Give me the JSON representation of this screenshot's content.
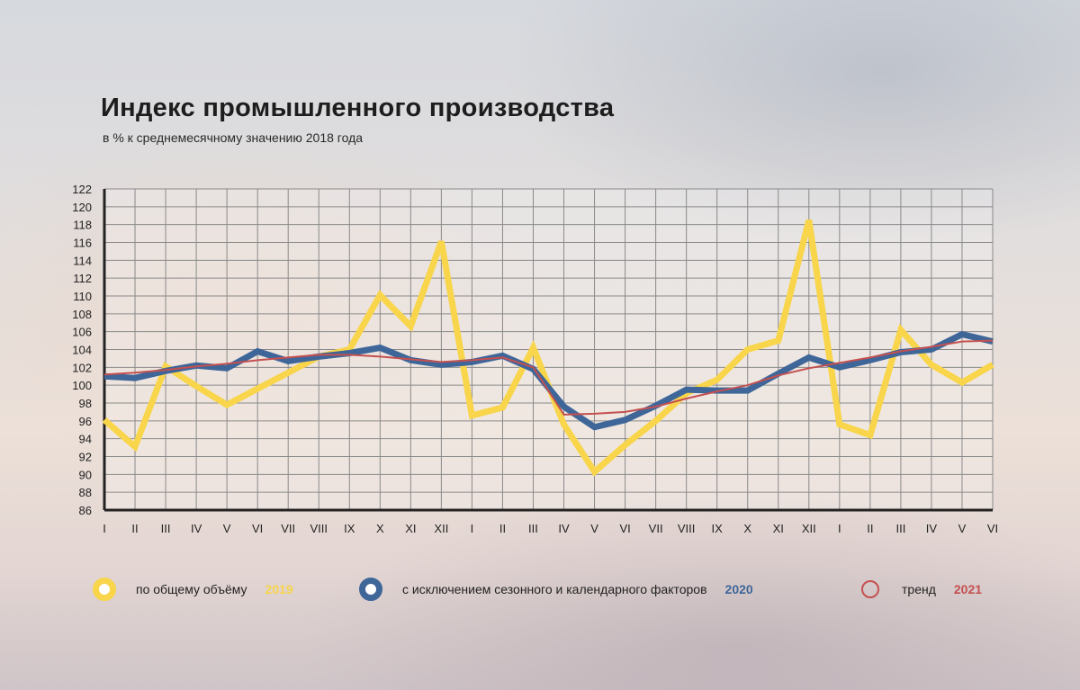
{
  "header": {
    "title": "Индекс промышленного производства",
    "subtitle": "в % к среднемесячному значению 2018 года"
  },
  "legend": [
    {
      "label": "по общему объёму",
      "year": "2019",
      "color": "#f8d54a",
      "marker": "filled-ring"
    },
    {
      "label": "с исключением сезонного и календарного факторов",
      "year": "2020",
      "color": "#3f6699",
      "marker": "filled-ring"
    },
    {
      "label": "тренд",
      "year": "2021",
      "color": "#c45050",
      "marker": "thin-ring"
    }
  ],
  "chart_data": {
    "type": "line",
    "title": "Индекс промышленного производства",
    "subtitle": "в % к среднемесячному значению 2018 года",
    "ylim": [
      86,
      122
    ],
    "yticks": [
      86,
      88,
      90,
      92,
      94,
      96,
      98,
      100,
      102,
      104,
      106,
      108,
      110,
      112,
      114,
      116,
      118,
      120,
      122
    ],
    "ytick_labels": [
      "86",
      "88",
      "90",
      "92",
      "94",
      "96",
      "98",
      "100",
      "102",
      "104",
      "106",
      "108",
      "110",
      "112",
      "114",
      "116",
      "118",
      "120",
      "122"
    ],
    "categories": [
      "I",
      "II",
      "III",
      "IV",
      "V",
      "VI",
      "VII",
      "VIII",
      "IX",
      "X",
      "XI",
      "XII",
      "I",
      "II",
      "III",
      "IV",
      "V",
      "VI",
      "VII",
      "VIII",
      "IX",
      "X",
      "XI",
      "XII",
      "I",
      "II",
      "III",
      "IV",
      "V",
      "VI"
    ],
    "grid": true,
    "series": [
      {
        "name": "по общему объёму",
        "color": "#f8d54a",
        "values": [
          96.1,
          93.1,
          102.1,
          99.9,
          97.8,
          99.6,
          101.4,
          103.2,
          104.0,
          110.1,
          106.6,
          116.1,
          96.6,
          97.5,
          104.2,
          95.6,
          90.3,
          93.3,
          96.0,
          99.1,
          100.6,
          104.0,
          105.0,
          118.5,
          95.6,
          94.4,
          106.2,
          102.3,
          100.3,
          102.3
        ]
      },
      {
        "name": "с исключением сезонного и календарного факторов",
        "color": "#3f6699",
        "values": [
          101.0,
          100.8,
          101.6,
          102.2,
          101.9,
          103.8,
          102.7,
          103.2,
          103.6,
          104.2,
          102.8,
          102.3,
          102.6,
          103.3,
          101.8,
          97.6,
          95.3,
          96.1,
          97.7,
          99.5,
          99.4,
          99.4,
          101.3,
          103.1,
          102.0,
          102.8,
          103.7,
          104.0,
          105.7,
          104.9
        ]
      },
      {
        "name": "тренд",
        "color": "#c45050",
        "values": [
          101.2,
          101.4,
          101.7,
          102.1,
          102.4,
          102.8,
          103.1,
          103.4,
          103.4,
          103.2,
          102.9,
          102.6,
          102.8,
          103.1,
          102.0,
          96.7,
          96.8,
          97.0,
          97.6,
          98.5,
          99.3,
          100.0,
          101.1,
          101.9,
          102.5,
          103.1,
          103.8,
          104.3,
          104.9,
          105.0
        ]
      }
    ]
  }
}
